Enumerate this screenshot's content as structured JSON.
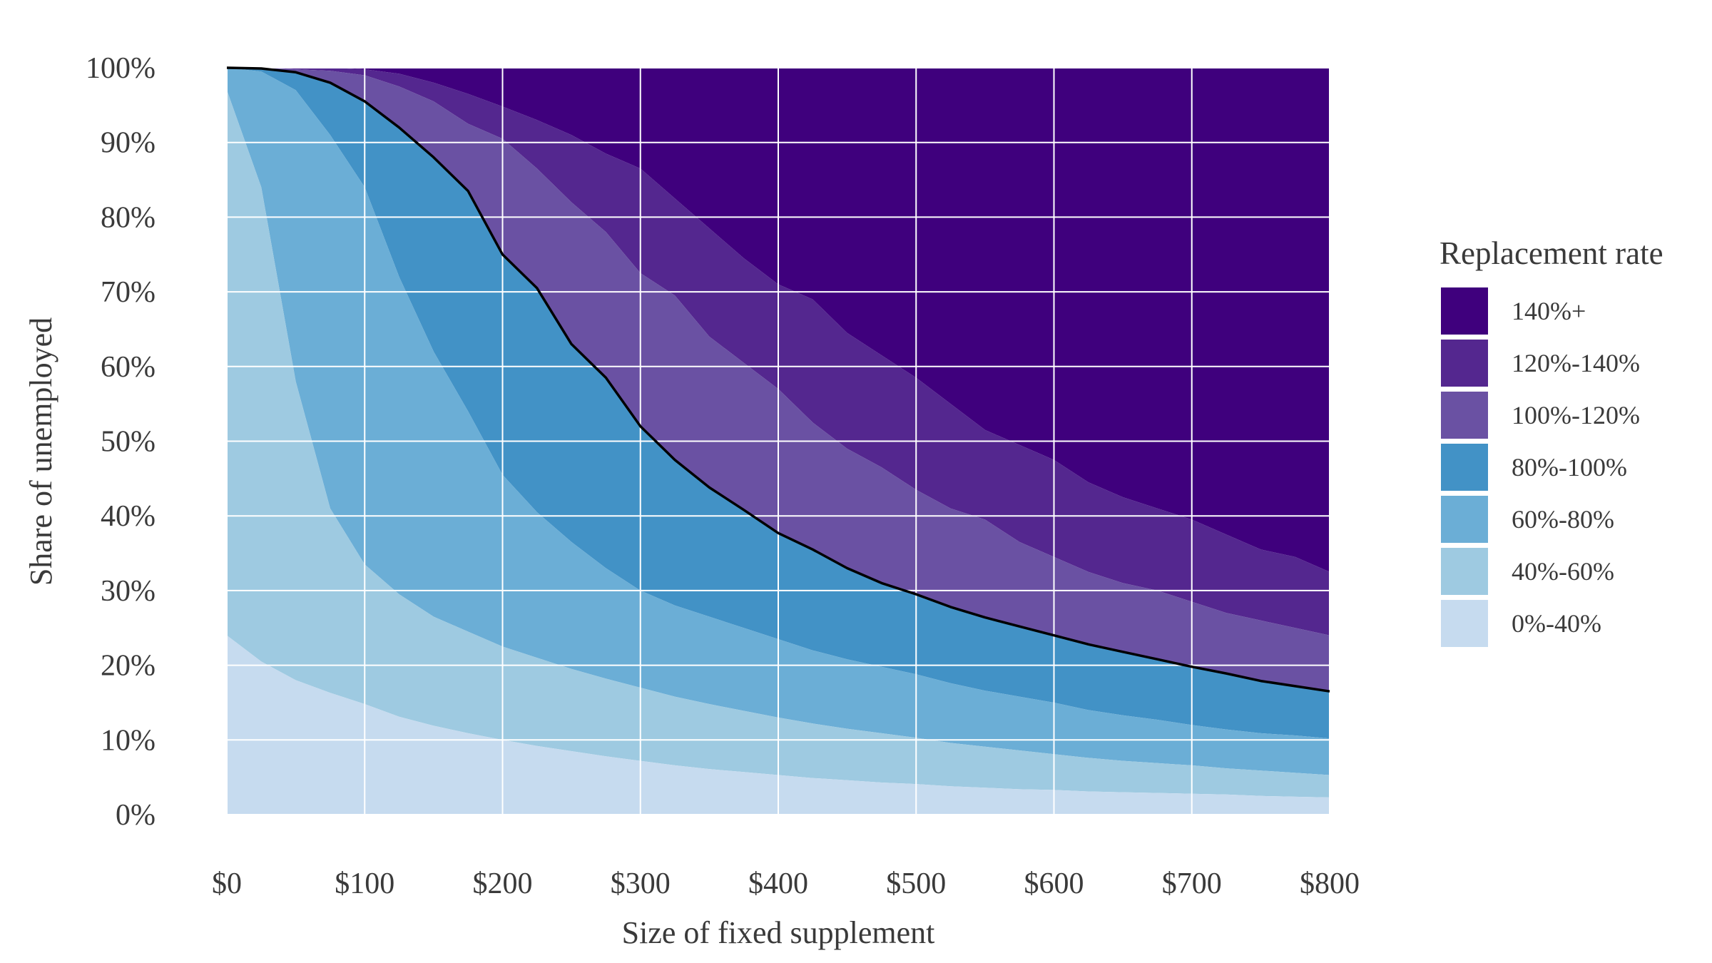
{
  "chart_data": {
    "type": "area",
    "stacked": true,
    "xlabel": "Size of fixed supplement",
    "ylabel": "Share of unemployed",
    "xlim": [
      0,
      800
    ],
    "ylim": [
      0,
      100
    ],
    "x_ticks": [
      0,
      100,
      200,
      300,
      400,
      500,
      600,
      700,
      800
    ],
    "x_tick_labels": [
      "$0",
      "$100",
      "$200",
      "$300",
      "$400",
      "$500",
      "$600",
      "$700",
      "$800"
    ],
    "y_ticks": [
      0,
      10,
      20,
      30,
      40,
      50,
      60,
      70,
      80,
      90,
      100
    ],
    "y_tick_labels": [
      "0%",
      "10%",
      "20%",
      "30%",
      "40%",
      "50%",
      "60%",
      "70%",
      "80%",
      "90%",
      "100%"
    ],
    "grid": true,
    "legend": {
      "title": "Replacement rate",
      "placement": "right",
      "order": [
        "140%+",
        "120%-140%",
        "100%-120%",
        "80%-100%",
        "60%-80%",
        "40%-60%",
        "0%-40%"
      ]
    },
    "x": [
      0,
      25,
      50,
      75,
      100,
      125,
      150,
      175,
      200,
      225,
      250,
      275,
      300,
      325,
      350,
      375,
      400,
      425,
      450,
      475,
      500,
      525,
      550,
      575,
      600,
      625,
      650,
      675,
      700,
      725,
      750,
      775,
      800
    ],
    "boundaries_cumulative": [
      {
        "name": "0%-40%",
        "values": [
          24,
          20.5,
          18,
          16.3,
          14.8,
          13.1,
          11.9,
          10.9,
          10,
          9.2,
          8.5,
          7.8,
          7.2,
          6.6,
          6.1,
          5.7,
          5.3,
          4.9,
          4.6,
          4.3,
          4.1,
          3.8,
          3.6,
          3.4,
          3.3,
          3.1,
          3,
          2.9,
          2.8,
          2.7,
          2.5,
          2.4,
          2.3
        ]
      },
      {
        "name": "40%-60%",
        "values": [
          97,
          84,
          58,
          41,
          33.5,
          29.5,
          26.5,
          24.5,
          22.5,
          21,
          19.5,
          18.2,
          17,
          15.8,
          14.8,
          13.9,
          13,
          12.2,
          11.5,
          10.9,
          10.3,
          9.6,
          9.1,
          8.6,
          8.1,
          7.6,
          7.2,
          6.9,
          6.6,
          6.2,
          5.9,
          5.6,
          5.3
        ]
      },
      {
        "name": "60%-80%",
        "values": [
          100,
          99.5,
          97,
          91,
          84,
          72,
          62,
          54,
          45.5,
          40.5,
          36.5,
          33,
          30,
          28,
          26.5,
          25,
          23.5,
          22,
          20.8,
          19.8,
          18.8,
          17.6,
          16.6,
          15.8,
          15,
          14,
          13.3,
          12.7,
          12,
          11.4,
          10.9,
          10.6,
          10.2
        ]
      },
      {
        "name": "80%-100%",
        "values": [
          100,
          99.9,
          99.4,
          98,
          95.5,
          92,
          88,
          83.5,
          75,
          70.5,
          63,
          58.5,
          52,
          47.5,
          43.8,
          40.8,
          37.7,
          35.5,
          33,
          31,
          29.5,
          27.8,
          26.4,
          25.2,
          24,
          22.8,
          21.8,
          20.8,
          19.8,
          18.9,
          17.9,
          17.2,
          16.5
        ]
      },
      {
        "name": "100%-120%",
        "values": [
          100,
          100,
          99.8,
          99.6,
          99,
          97.5,
          95.5,
          92.5,
          90.5,
          86.5,
          82,
          78,
          72.5,
          69.5,
          64,
          60.5,
          57,
          52.5,
          49,
          46.5,
          43.5,
          41,
          39.5,
          36.5,
          34.5,
          32.5,
          31,
          30,
          28.5,
          27,
          26,
          25,
          24
        ]
      },
      {
        "name": "120%-140%",
        "values": [
          100,
          100,
          100,
          100,
          99.8,
          99.2,
          98,
          96.5,
          94.8,
          93,
          91,
          88.5,
          86.5,
          82.5,
          78.5,
          74.5,
          71,
          69,
          64.5,
          61.5,
          58.5,
          55,
          51.5,
          49.5,
          47.5,
          44.5,
          42.5,
          41,
          39.5,
          37.5,
          35.5,
          34.5,
          32.5
        ]
      },
      {
        "name": "140%+",
        "values": [
          100,
          100,
          100,
          100,
          100,
          100,
          100,
          100,
          100,
          100,
          100,
          100,
          100,
          100,
          100,
          100,
          100,
          100,
          100,
          100,
          100,
          100,
          100,
          100,
          100,
          100,
          100,
          100,
          100,
          100,
          100,
          100,
          100
        ]
      }
    ],
    "highlight_line": {
      "boundary": "80%-100%",
      "color": "#000000",
      "description": "upper edge of 80%-100% band (100% replacement)"
    }
  },
  "colors": {
    "0%-40%": "#c6dbef",
    "40%-60%": "#9ecae1",
    "60%-80%": "#6baed6",
    "80%-100%": "#4292c6",
    "100%-120%": "#6a51a3",
    "120%-140%": "#54278f",
    "140%+": "#3f007d",
    "grid": "#ffffff",
    "text": "#3a3a3a"
  }
}
